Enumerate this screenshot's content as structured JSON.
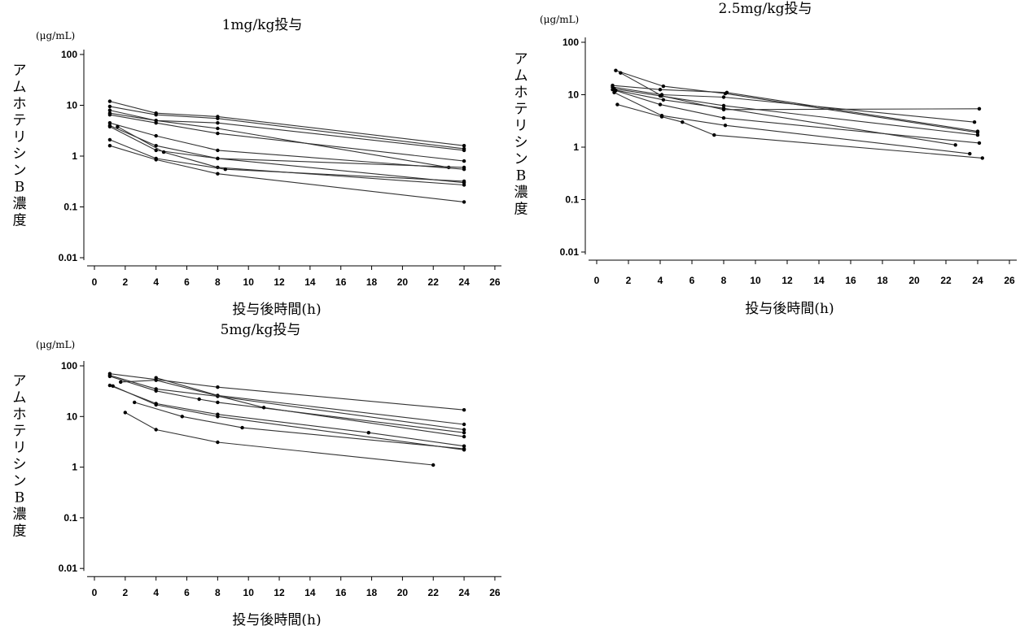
{
  "chart_data": [
    {
      "type": "line",
      "title": "1mg/kg投与",
      "xlabel": "投与後時間(h)",
      "ylabel": "アムホテリシンB濃度",
      "yunit": "(μg/mL)",
      "yscale": "log",
      "xlim": [
        0,
        26
      ],
      "ylim": [
        0.01,
        100
      ],
      "xticks": [
        "0",
        "2",
        "4",
        "6",
        "8",
        "10",
        "12",
        "14",
        "16",
        "18",
        "20",
        "22",
        "24",
        "26"
      ],
      "yticks": [
        "0.01",
        "0.1",
        "1",
        "10",
        "100"
      ],
      "series": [
        {
          "points": [
            [
              1,
              12
            ],
            [
              4,
              7
            ],
            [
              8,
              6
            ],
            [
              24,
              1.6
            ]
          ]
        },
        {
          "points": [
            [
              1,
              9.5
            ],
            [
              4,
              6.5
            ],
            [
              8,
              5.5
            ],
            [
              24,
              1.4
            ]
          ]
        },
        {
          "points": [
            [
              1,
              8
            ],
            [
              4,
              5
            ],
            [
              8,
              4.5
            ],
            [
              24,
              1.3
            ]
          ]
        },
        {
          "points": [
            [
              1,
              7
            ],
            [
              4,
              5
            ],
            [
              8,
              3.5
            ],
            [
              23,
              0.6
            ]
          ]
        },
        {
          "points": [
            [
              1,
              6.5
            ],
            [
              4,
              4.5
            ],
            [
              8,
              2.8
            ],
            [
              24,
              0.8
            ]
          ]
        },
        {
          "points": [
            [
              1,
              4.5
            ],
            [
              4,
              2.5
            ],
            [
              8,
              1.3
            ],
            [
              24,
              0.55
            ]
          ]
        },
        {
          "points": [
            [
              1,
              4
            ],
            [
              4,
              1.6
            ],
            [
              8,
              0.9
            ],
            [
              24,
              0.6
            ]
          ]
        },
        {
          "points": [
            [
              1,
              3.8
            ],
            [
              4,
              1.3
            ],
            [
              8,
              0.9
            ],
            [
              24,
              0.3
            ]
          ]
        },
        {
          "points": [
            [
              1.5,
              3.8
            ],
            [
              4.5,
              1.2
            ],
            [
              8,
              0.6
            ],
            [
              24,
              0.27
            ]
          ]
        },
        {
          "points": [
            [
              1,
              2.1
            ],
            [
              4,
              0.9
            ],
            [
              8.5,
              0.55
            ],
            [
              24,
              0.32
            ]
          ]
        },
        {
          "points": [
            [
              1,
              1.6
            ],
            [
              4,
              0.85
            ],
            [
              8,
              0.45
            ],
            [
              24,
              0.125
            ]
          ]
        }
      ]
    },
    {
      "type": "line",
      "title": "2.5mg/kg投与",
      "xlabel": "投与後時間(h)",
      "ylabel": "アムホテリシンB濃度",
      "yunit": "(μg/mL)",
      "yscale": "log",
      "xlim": [
        0,
        26
      ],
      "ylim": [
        0.01,
        100
      ],
      "xticks": [
        "0",
        "2",
        "4",
        "6",
        "8",
        "10",
        "12",
        "14",
        "16",
        "18",
        "20",
        "22",
        "24",
        "26"
      ],
      "yticks": [
        "0.01",
        "0.1",
        "1",
        "10",
        "100"
      ],
      "series": [
        {
          "points": [
            [
              1.2,
              29
            ],
            [
              4.2,
              14.5
            ],
            [
              8.1,
              10.5
            ],
            [
              24,
              1.9
            ]
          ]
        },
        {
          "points": [
            [
              1.5,
              26
            ],
            [
              4.1,
              9.5
            ],
            [
              8,
              5.2
            ],
            [
              24.1,
              5.4
            ]
          ]
        },
        {
          "points": [
            [
              1,
              15
            ],
            [
              4,
              12.5
            ],
            [
              8.2,
              11
            ],
            [
              24,
              2
            ]
          ]
        },
        {
          "points": [
            [
              1,
              14
            ],
            [
              4.1,
              10
            ],
            [
              8,
              9
            ],
            [
              23.8,
              3
            ]
          ]
        },
        {
          "points": [
            [
              1.1,
              13
            ],
            [
              4,
              9.5
            ],
            [
              8,
              6.2
            ],
            [
              24,
              1.7
            ]
          ]
        },
        {
          "points": [
            [
              1,
              12.5
            ],
            [
              4.2,
              8
            ],
            [
              8,
              5.5
            ],
            [
              22.6,
              1.1
            ]
          ]
        },
        {
          "points": [
            [
              1.2,
              12
            ],
            [
              4,
              6.5
            ],
            [
              8,
              3.6
            ],
            [
              24.1,
              1.2
            ]
          ]
        },
        {
          "points": [
            [
              1.1,
              11
            ],
            [
              4.1,
              4
            ],
            [
              8.1,
              2.6
            ],
            [
              23.5,
              0.75
            ]
          ]
        },
        {
          "points": [
            [
              1.3,
              6.5
            ],
            [
              4.1,
              3.8
            ],
            [
              5.4,
              3
            ],
            [
              7.4,
              1.7
            ],
            [
              24.3,
              0.62
            ]
          ]
        }
      ]
    },
    {
      "type": "line",
      "title": "5mg/kg投与",
      "xlabel": "投与後時間(h)",
      "ylabel": "アムホテリシンB濃度",
      "yunit": "(μg/mL)",
      "yscale": "log",
      "xlim": [
        0,
        26
      ],
      "ylim": [
        0.01,
        100
      ],
      "xticks": [
        "0",
        "2",
        "4",
        "6",
        "8",
        "10",
        "12",
        "14",
        "16",
        "18",
        "20",
        "22",
        "24",
        "26"
      ],
      "yticks": [
        "0.01",
        "0.1",
        "1",
        "10",
        "100"
      ],
      "series": [
        {
          "points": [
            [
              1,
              70
            ],
            [
              8,
              38
            ],
            [
              24,
              13.5
            ]
          ]
        },
        {
          "points": [
            [
              4,
              58
            ],
            [
              8,
              26
            ],
            [
              24,
              7
            ]
          ]
        },
        {
          "points": [
            [
              1,
              65
            ],
            [
              4,
              35
            ],
            [
              8,
              25
            ],
            [
              24,
              5.5
            ]
          ]
        },
        {
          "points": [
            [
              1,
              62
            ],
            [
              4,
              32
            ],
            [
              6.8,
              22
            ],
            [
              8,
              19
            ],
            [
              24,
              4.8
            ]
          ]
        },
        {
          "points": [
            [
              1.7,
              48
            ],
            [
              4,
              52
            ],
            [
              11,
              15
            ],
            [
              24,
              4
            ]
          ]
        },
        {
          "points": [
            [
              1,
              41
            ],
            [
              4,
              18
            ],
            [
              8,
              11
            ],
            [
              17.8,
              4.8
            ],
            [
              24,
              2.6
            ]
          ]
        },
        {
          "points": [
            [
              1.2,
              40
            ],
            [
              4,
              17
            ],
            [
              8,
              10
            ],
            [
              24,
              2.2
            ]
          ]
        },
        {
          "points": [
            [
              2.6,
              19
            ],
            [
              5.7,
              10
            ],
            [
              9.6,
              6
            ],
            [
              24,
              2.3
            ]
          ]
        },
        {
          "points": [
            [
              2,
              12
            ],
            [
              4,
              5.5
            ],
            [
              8,
              3.1
            ],
            [
              22,
              1.1
            ]
          ]
        }
      ]
    }
  ]
}
